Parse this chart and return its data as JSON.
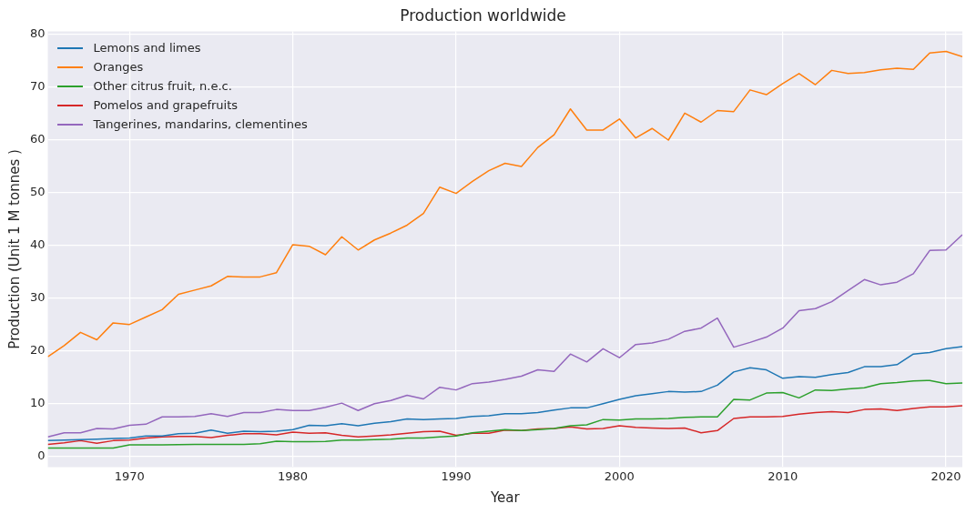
{
  "chart_data": {
    "type": "line",
    "title": "Production worldwide",
    "xlabel": "Year",
    "ylabel": "Production (Unit 1 M tonnes )",
    "x": [
      1965,
      1966,
      1967,
      1968,
      1969,
      1970,
      1971,
      1972,
      1973,
      1974,
      1975,
      1976,
      1977,
      1978,
      1979,
      1980,
      1981,
      1982,
      1983,
      1984,
      1985,
      1986,
      1987,
      1988,
      1989,
      1990,
      1991,
      1992,
      1993,
      1994,
      1995,
      1996,
      1997,
      1998,
      1999,
      2000,
      2001,
      2002,
      2003,
      2004,
      2005,
      2006,
      2007,
      2008,
      2009,
      2010,
      2011,
      2012,
      2013,
      2014,
      2015,
      2016,
      2017,
      2018,
      2019,
      2020,
      2021
    ],
    "series": [
      {
        "name": "Lemons and limes",
        "color": "#1f77b4",
        "values": [
          3.0,
          3.1,
          3.2,
          3.3,
          3.4,
          3.5,
          3.9,
          3.9,
          4.3,
          4.4,
          5.0,
          4.4,
          4.8,
          4.7,
          4.8,
          5.1,
          5.9,
          5.8,
          6.2,
          5.8,
          6.3,
          6.6,
          7.1,
          7.0,
          7.1,
          7.2,
          7.6,
          7.7,
          8.1,
          8.1,
          8.3,
          8.8,
          9.2,
          9.2,
          10.0,
          10.8,
          11.5,
          11.9,
          12.3,
          12.2,
          12.3,
          13.5,
          16.0,
          16.8,
          16.4,
          14.8,
          15.1,
          15.0,
          15.5,
          15.9,
          17.0,
          17.0,
          17.4,
          19.4,
          19.7,
          20.4,
          20.8
        ]
      },
      {
        "name": "Oranges",
        "color": "#ff7f0e",
        "values": [
          18.9,
          21.0,
          23.5,
          22.1,
          25.3,
          25.0,
          26.4,
          27.8,
          30.7,
          31.5,
          32.3,
          34.1,
          34.0,
          34.0,
          34.8,
          40.1,
          39.8,
          38.2,
          41.6,
          39.1,
          41.0,
          42.3,
          43.8,
          46.0,
          51.0,
          49.8,
          52.1,
          54.1,
          55.5,
          54.9,
          58.5,
          60.9,
          65.8,
          61.8,
          61.8,
          63.9,
          60.3,
          62.1,
          59.9,
          65.0,
          63.3,
          65.5,
          65.3,
          69.4,
          68.5,
          70.6,
          72.5,
          70.4,
          73.1,
          72.5,
          72.7,
          73.2,
          73.5,
          73.3,
          76.4,
          76.7,
          75.7
        ]
      },
      {
        "name": "Other citrus fruit, n.e.c.",
        "color": "#2ca02c",
        "values": [
          1.6,
          1.6,
          1.6,
          1.6,
          1.6,
          2.2,
          2.2,
          2.2,
          2.25,
          2.3,
          2.3,
          2.3,
          2.3,
          2.4,
          2.9,
          2.8,
          2.8,
          2.85,
          3.1,
          3.1,
          3.2,
          3.3,
          3.5,
          3.5,
          3.7,
          3.9,
          4.5,
          4.8,
          5.1,
          4.9,
          5.1,
          5.3,
          5.8,
          6.0,
          7.0,
          6.9,
          7.1,
          7.1,
          7.2,
          7.4,
          7.5,
          7.5,
          10.8,
          10.7,
          12.0,
          12.1,
          11.1,
          12.6,
          12.5,
          12.8,
          13.0,
          13.8,
          14.0,
          14.3,
          14.4,
          13.8,
          13.9
        ]
      },
      {
        "name": "Pomelos and grapefruits",
        "color": "#d62728",
        "values": [
          2.3,
          2.6,
          3.0,
          2.5,
          3.0,
          3.1,
          3.5,
          3.7,
          3.8,
          3.8,
          3.6,
          4.0,
          4.3,
          4.3,
          4.1,
          4.6,
          4.4,
          4.5,
          4.0,
          3.7,
          3.9,
          4.1,
          4.4,
          4.7,
          4.8,
          4.0,
          4.4,
          4.4,
          5.0,
          4.9,
          5.2,
          5.3,
          5.6,
          5.2,
          5.3,
          5.8,
          5.5,
          5.4,
          5.3,
          5.4,
          4.5,
          4.9,
          7.2,
          7.5,
          7.5,
          7.6,
          8.0,
          8.3,
          8.5,
          8.3,
          8.9,
          9.0,
          8.7,
          9.1,
          9.4,
          9.4,
          9.6
        ]
      },
      {
        "name": "Tangerines, mandarins, clementines",
        "color": "#9467bd",
        "values": [
          3.7,
          4.5,
          4.5,
          5.3,
          5.2,
          5.9,
          6.1,
          7.5,
          7.5,
          7.6,
          8.1,
          7.6,
          8.3,
          8.3,
          8.9,
          8.7,
          8.7,
          9.3,
          10.1,
          8.7,
          10.0,
          10.6,
          11.6,
          10.9,
          13.1,
          12.6,
          13.8,
          14.1,
          14.6,
          15.2,
          16.4,
          16.1,
          19.4,
          17.9,
          20.4,
          18.7,
          21.2,
          21.5,
          22.2,
          23.7,
          24.3,
          26.2,
          20.7,
          21.6,
          22.6,
          24.3,
          27.6,
          28.0,
          29.3,
          31.4,
          33.5,
          32.5,
          33.0,
          34.6,
          39.0,
          39.1,
          42.0
        ]
      }
    ],
    "xlim": [
      1965,
      2021
    ],
    "xticks": [
      1970,
      1980,
      1990,
      2000,
      2010,
      2020
    ],
    "ylim": [
      -2,
      80.5
    ],
    "yticks": [
      0,
      10,
      20,
      30,
      40,
      50,
      60,
      70,
      80
    ],
    "grid": true,
    "legend": "top left",
    "marker": "none",
    "line_style": "solid"
  }
}
